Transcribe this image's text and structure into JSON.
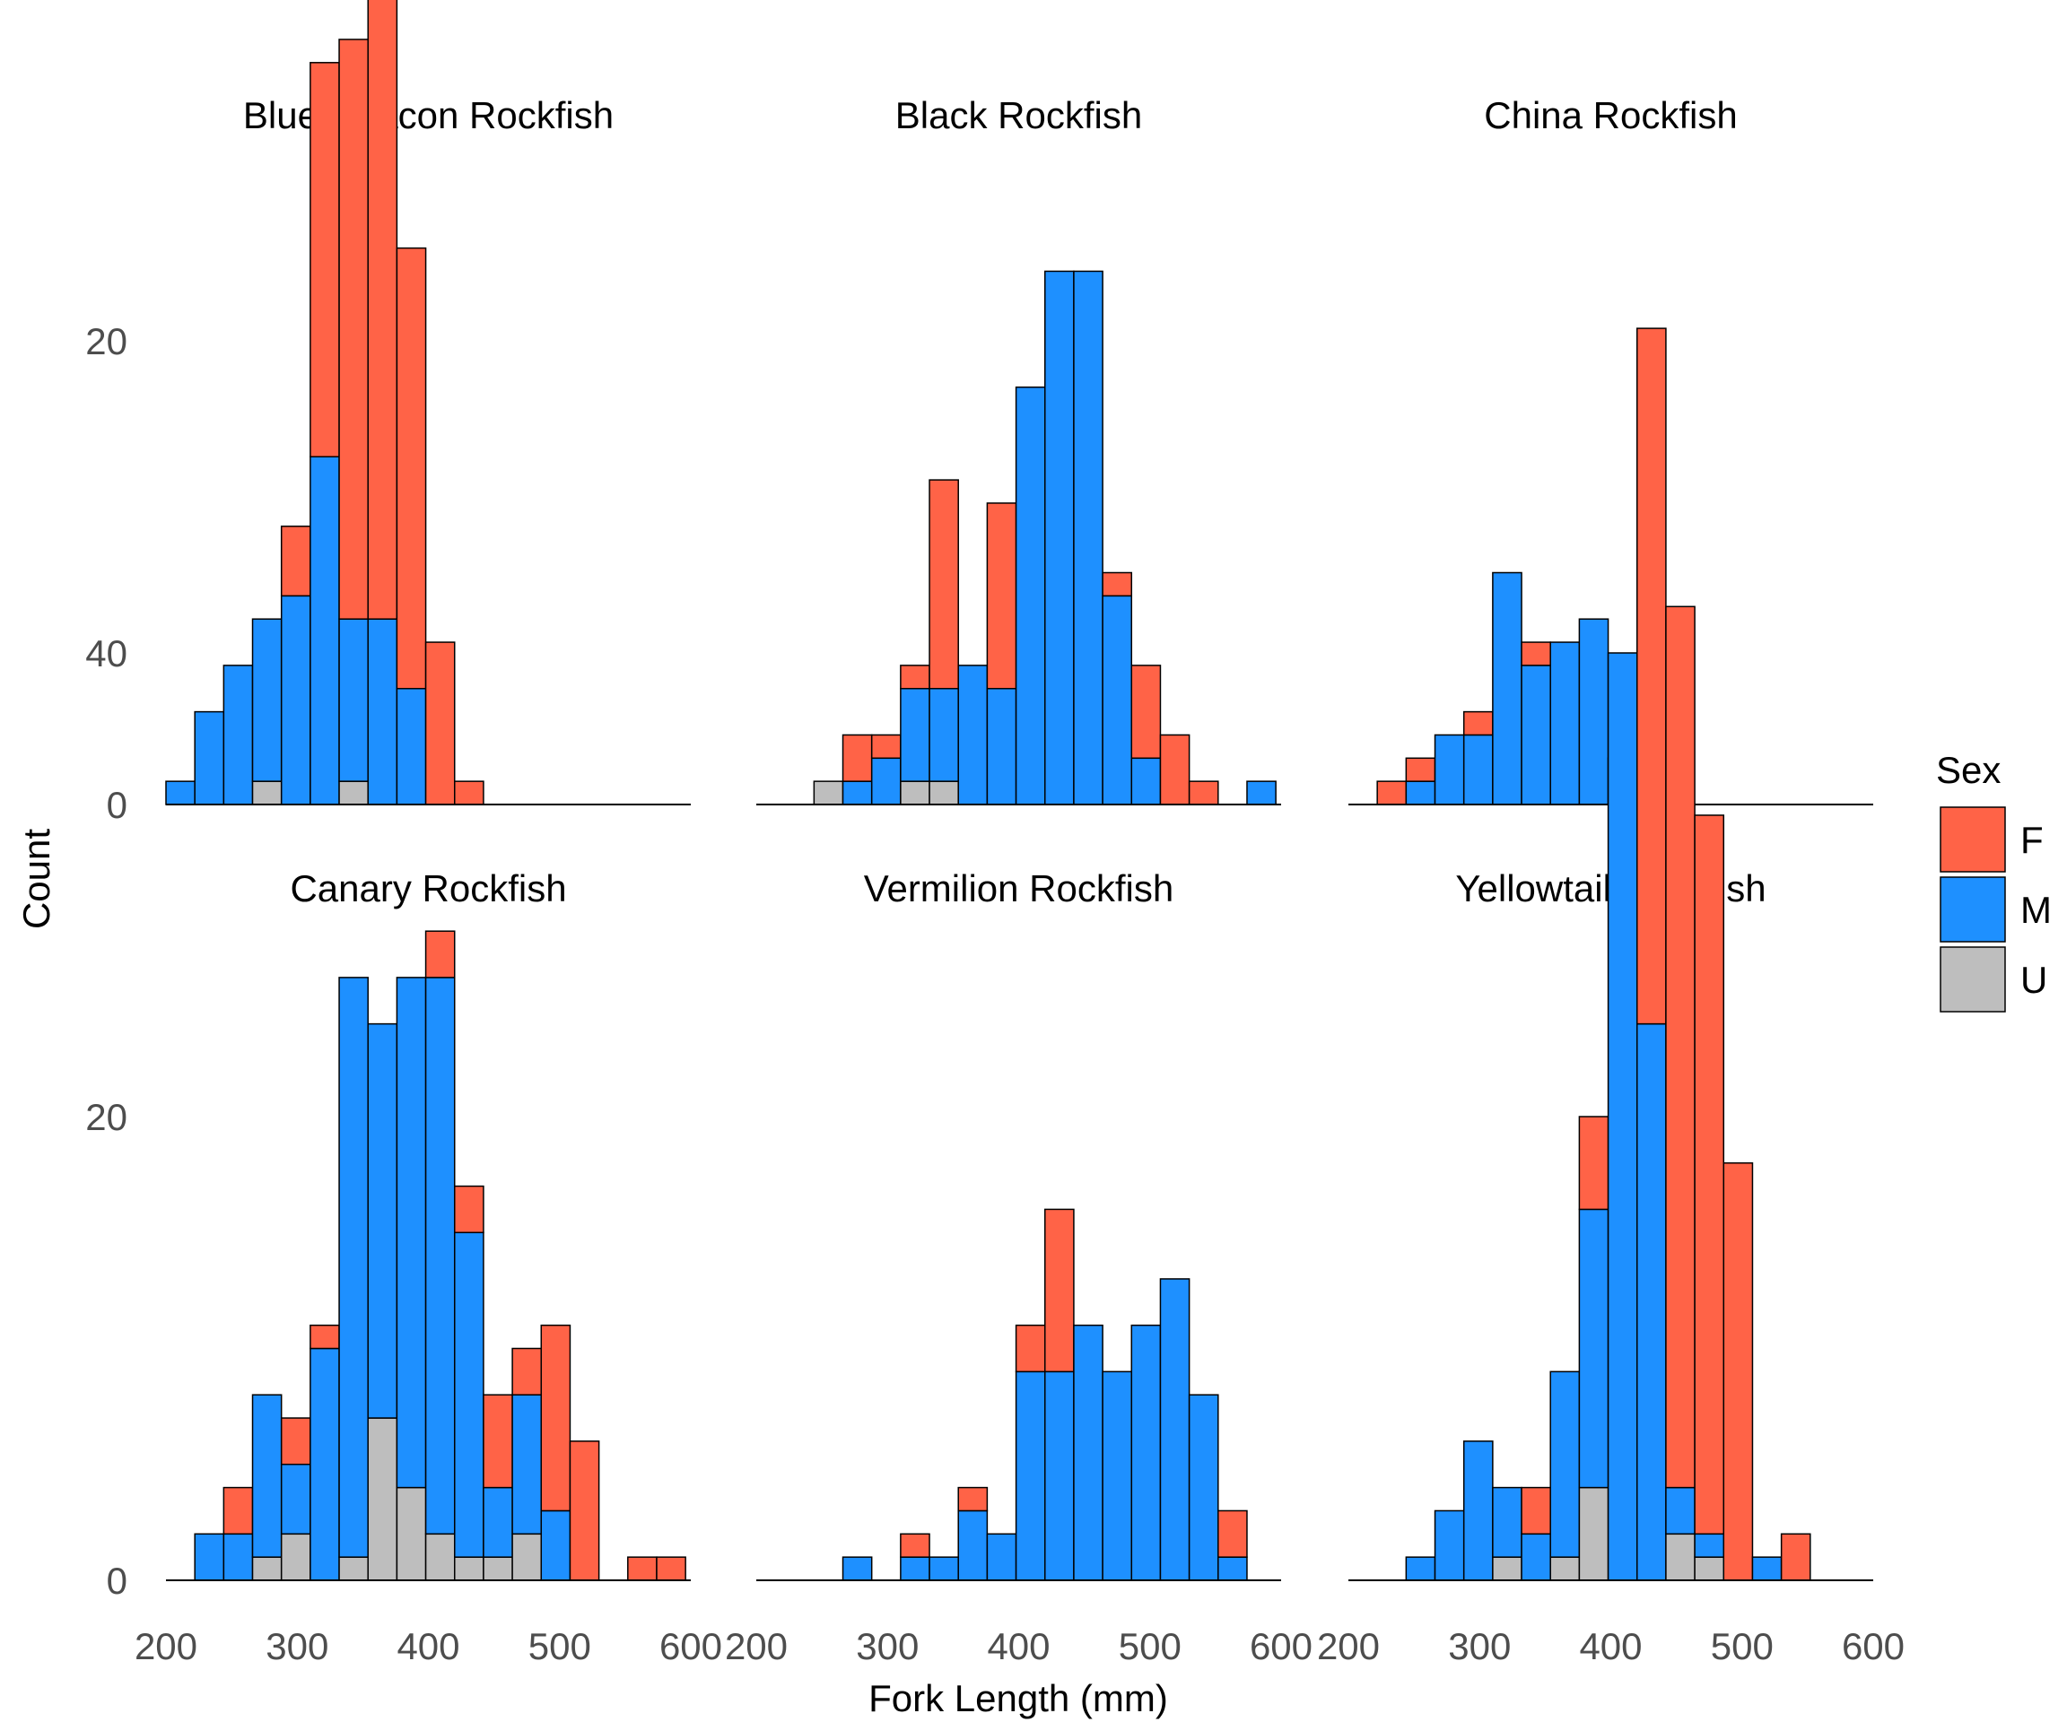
{
  "chart_data": {
    "type": "bar",
    "subtype": "faceted stacked histogram",
    "xlabel": "Fork Length (mm)",
    "ylabel": "Count",
    "xlim": [
      200,
      600
    ],
    "x_ticks": [
      200,
      300,
      400,
      500,
      600
    ],
    "y_ticks": [
      0,
      20,
      40
    ],
    "ylim": [
      0,
      55
    ],
    "bin_width": 22,
    "legend": {
      "title": "Sex",
      "position": "right",
      "entries": [
        {
          "name": "F",
          "color": "#FF6347"
        },
        {
          "name": "M",
          "color": "#1E90FF"
        },
        {
          "name": "U",
          "color": "#BEBEBE"
        }
      ]
    },
    "stack_order": [
      "U",
      "M",
      "F"
    ],
    "facets": [
      {
        "title": "Blue/Deacon Rockfish",
        "bins": [
          {
            "x": 211,
            "U": 0,
            "M": 1,
            "F": 0
          },
          {
            "x": 233,
            "U": 0,
            "M": 4,
            "F": 0
          },
          {
            "x": 255,
            "U": 0,
            "M": 6,
            "F": 0
          },
          {
            "x": 277,
            "U": 1,
            "M": 7,
            "F": 0
          },
          {
            "x": 299,
            "U": 0,
            "M": 9,
            "F": 3
          },
          {
            "x": 321,
            "U": 0,
            "M": 15,
            "F": 17
          },
          {
            "x": 343,
            "U": 1,
            "M": 7,
            "F": 25
          },
          {
            "x": 365,
            "U": 0,
            "M": 8,
            "F": 36
          },
          {
            "x": 387,
            "U": 0,
            "M": 5,
            "F": 19
          },
          {
            "x": 409,
            "U": 0,
            "M": 0,
            "F": 7
          },
          {
            "x": 431,
            "U": 0,
            "M": 0,
            "F": 1
          }
        ]
      },
      {
        "title": "Black Rockfish",
        "bins": [
          {
            "x": 255,
            "U": 1,
            "M": 0,
            "F": 0
          },
          {
            "x": 277,
            "U": 0,
            "M": 1,
            "F": 2
          },
          {
            "x": 299,
            "U": 0,
            "M": 2,
            "F": 1
          },
          {
            "x": 321,
            "U": 1,
            "M": 4,
            "F": 1
          },
          {
            "x": 343,
            "U": 1,
            "M": 4,
            "F": 9
          },
          {
            "x": 365,
            "U": 0,
            "M": 6,
            "F": 0
          },
          {
            "x": 387,
            "U": 0,
            "M": 5,
            "F": 8
          },
          {
            "x": 409,
            "U": 0,
            "M": 18,
            "F": 0
          },
          {
            "x": 431,
            "U": 0,
            "M": 23,
            "F": 0
          },
          {
            "x": 453,
            "U": 0,
            "M": 23,
            "F": 0
          },
          {
            "x": 475,
            "U": 0,
            "M": 9,
            "F": 1
          },
          {
            "x": 497,
            "U": 0,
            "M": 2,
            "F": 4
          },
          {
            "x": 519,
            "U": 0,
            "M": 0,
            "F": 3
          },
          {
            "x": 541,
            "U": 0,
            "M": 0,
            "F": 1
          },
          {
            "x": 585,
            "U": 0,
            "M": 1,
            "F": 0
          }
        ]
      },
      {
        "title": "China Rockfish",
        "bins": [
          {
            "x": 233,
            "U": 0,
            "M": 0,
            "F": 1
          },
          {
            "x": 255,
            "U": 0,
            "M": 1,
            "F": 1
          },
          {
            "x": 277,
            "U": 0,
            "M": 3,
            "F": 0
          },
          {
            "x": 299,
            "U": 0,
            "M": 3,
            "F": 1
          },
          {
            "x": 321,
            "U": 0,
            "M": 10,
            "F": 0
          },
          {
            "x": 343,
            "U": 0,
            "M": 6,
            "F": 1
          },
          {
            "x": 365,
            "U": 0,
            "M": 7,
            "F": 0
          },
          {
            "x": 387,
            "U": 0,
            "M": 8,
            "F": 0
          },
          {
            "x": 409,
            "U": 0,
            "M": 2,
            "F": 0
          }
        ]
      },
      {
        "title": "Canary Rockfish",
        "bins": [
          {
            "x": 233,
            "U": 0,
            "M": 2,
            "F": 0
          },
          {
            "x": 255,
            "U": 0,
            "M": 2,
            "F": 2
          },
          {
            "x": 277,
            "U": 1,
            "M": 7,
            "F": 0
          },
          {
            "x": 299,
            "U": 2,
            "M": 3,
            "F": 2
          },
          {
            "x": 321,
            "U": 0,
            "M": 10,
            "F": 1
          },
          {
            "x": 343,
            "U": 1,
            "M": 25,
            "F": 0
          },
          {
            "x": 365,
            "U": 7,
            "M": 17,
            "F": 0
          },
          {
            "x": 387,
            "U": 4,
            "M": 22,
            "F": 0
          },
          {
            "x": 409,
            "U": 2,
            "M": 24,
            "F": 2
          },
          {
            "x": 431,
            "U": 1,
            "M": 14,
            "F": 2
          },
          {
            "x": 453,
            "U": 1,
            "M": 3,
            "F": 4
          },
          {
            "x": 475,
            "U": 2,
            "M": 6,
            "F": 2
          },
          {
            "x": 497,
            "U": 0,
            "M": 3,
            "F": 8
          },
          {
            "x": 519,
            "U": 0,
            "M": 0,
            "F": 6
          },
          {
            "x": 563,
            "U": 0,
            "M": 0,
            "F": 1
          },
          {
            "x": 585,
            "U": 0,
            "M": 0,
            "F": 1
          }
        ]
      },
      {
        "title": "Vermilion Rockfish",
        "bins": [
          {
            "x": 277,
            "U": 0,
            "M": 1,
            "F": 0
          },
          {
            "x": 321,
            "U": 0,
            "M": 1,
            "F": 1
          },
          {
            "x": 343,
            "U": 0,
            "M": 1,
            "F": 0
          },
          {
            "x": 365,
            "U": 0,
            "M": 3,
            "F": 1
          },
          {
            "x": 387,
            "U": 0,
            "M": 2,
            "F": 0
          },
          {
            "x": 409,
            "U": 0,
            "M": 9,
            "F": 2
          },
          {
            "x": 431,
            "U": 0,
            "M": 9,
            "F": 7
          },
          {
            "x": 453,
            "U": 0,
            "M": 11,
            "F": 0
          },
          {
            "x": 475,
            "U": 0,
            "M": 9,
            "F": 0
          },
          {
            "x": 497,
            "U": 0,
            "M": 11,
            "F": 0
          },
          {
            "x": 519,
            "U": 0,
            "M": 13,
            "F": 0
          },
          {
            "x": 541,
            "U": 0,
            "M": 8,
            "F": 0
          },
          {
            "x": 563,
            "U": 0,
            "M": 1,
            "F": 2
          }
        ]
      },
      {
        "title": "Yellowtail Rockfish",
        "bins": [
          {
            "x": 255,
            "U": 0,
            "M": 1,
            "F": 0
          },
          {
            "x": 277,
            "U": 0,
            "M": 3,
            "F": 0
          },
          {
            "x": 299,
            "U": 0,
            "M": 6,
            "F": 0
          },
          {
            "x": 321,
            "U": 1,
            "M": 3,
            "F": 0
          },
          {
            "x": 343,
            "U": 0,
            "M": 2,
            "F": 2
          },
          {
            "x": 365,
            "U": 1,
            "M": 8,
            "F": 0
          },
          {
            "x": 387,
            "U": 4,
            "M": 12,
            "F": 4
          },
          {
            "x": 409,
            "U": 0,
            "M": 40,
            "F": 0
          },
          {
            "x": 431,
            "U": 0,
            "M": 24,
            "F": 30
          },
          {
            "x": 453,
            "U": 2,
            "M": 2,
            "F": 38
          },
          {
            "x": 475,
            "U": 1,
            "M": 1,
            "F": 31
          },
          {
            "x": 497,
            "U": 0,
            "M": 0,
            "F": 18
          },
          {
            "x": 519,
            "U": 0,
            "M": 1,
            "F": 0
          },
          {
            "x": 541,
            "U": 0,
            "M": 0,
            "F": 2
          }
        ]
      }
    ]
  }
}
